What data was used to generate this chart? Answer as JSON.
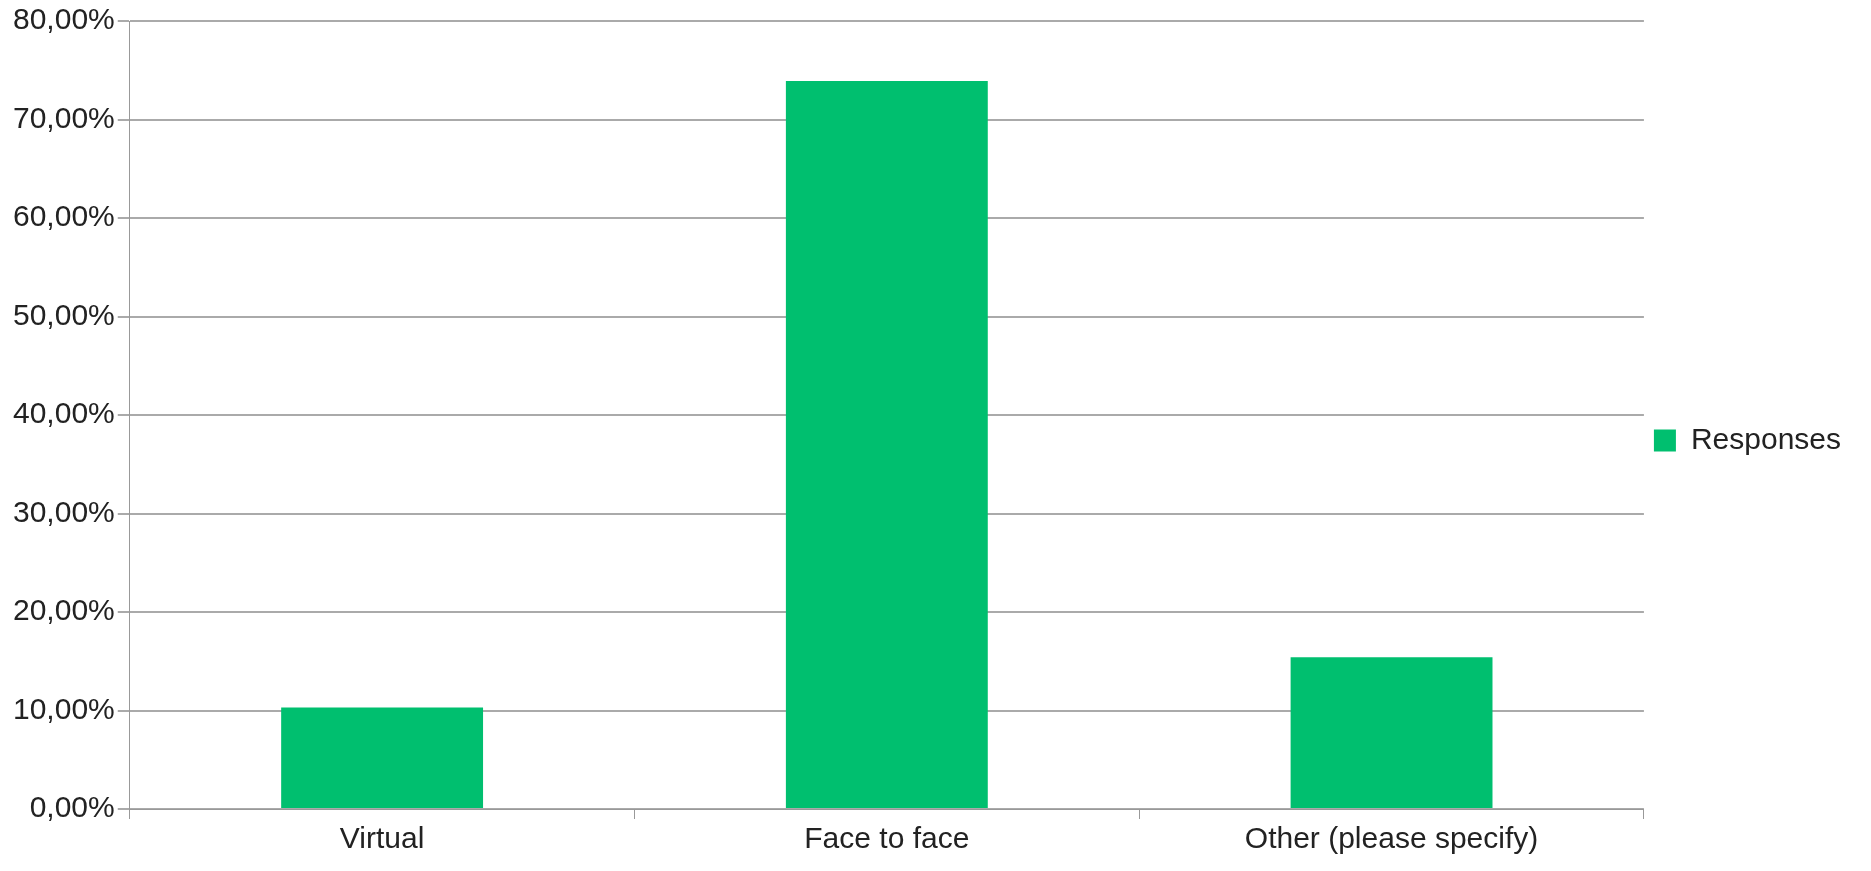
{
  "chart_data": {
    "type": "bar",
    "categories": [
      "Virtual",
      "Face to face",
      "Other (please specify)"
    ],
    "series": [
      {
        "name": "Responses",
        "color": "#00bf6f",
        "values": [
          10.3,
          73.9,
          15.4
        ]
      }
    ],
    "ylim": [
      0,
      80
    ],
    "yticks": [
      {
        "value": 0,
        "label": "0,00%"
      },
      {
        "value": 10,
        "label": "10,00%"
      },
      {
        "value": 20,
        "label": "20,00%"
      },
      {
        "value": 30,
        "label": "30,00%"
      },
      {
        "value": 40,
        "label": "40,00%"
      },
      {
        "value": 50,
        "label": "50,00%"
      },
      {
        "value": 60,
        "label": "60,00%"
      },
      {
        "value": 70,
        "label": "70,00%"
      },
      {
        "value": 80,
        "label": "80,00%"
      }
    ],
    "grid": "y",
    "legend": "right"
  }
}
